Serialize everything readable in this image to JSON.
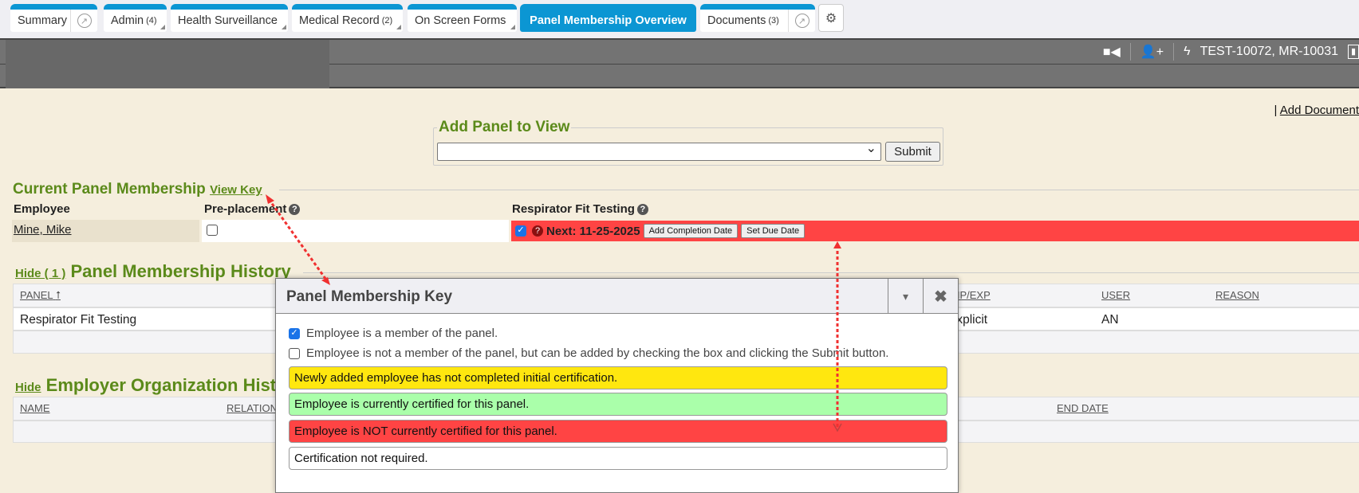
{
  "tabs": [
    {
      "label": "Summary",
      "badge": ""
    },
    {
      "label": "Admin",
      "badge": "(4)"
    },
    {
      "label": "Health Surveillance",
      "badge": ""
    },
    {
      "label": "Medical Record",
      "badge": "(2)"
    },
    {
      "label": "On Screen Forms",
      "badge": ""
    },
    {
      "label": "Panel Membership Overview",
      "badge": ""
    },
    {
      "label": "Documents",
      "badge": "(3)"
    }
  ],
  "header": {
    "record_id": "TEST-10072, MR-10031",
    "icons": [
      "video-icon",
      "add-user-icon",
      "bolt-icon",
      "chart-icon"
    ]
  },
  "add_document_link": "Add Document",
  "add_panel": {
    "legend": "Add Panel to View",
    "select_value": "",
    "submit_label": "Submit"
  },
  "current": {
    "title": "Current Panel Membership",
    "view_key": "View Key",
    "columns": [
      "Employee",
      "Pre-placement",
      "Respirator Fit Testing"
    ],
    "employee": "Mine, Mike",
    "preplacement_checked": false,
    "respirator_checked": true,
    "next": "Next: 11-25-2025",
    "add_completion": "Add Completion Date",
    "set_due": "Set Due Date",
    "status_color": "#ff4444"
  },
  "history": {
    "hide": "Hide ( 1 )",
    "title": "Panel Membership History",
    "columns": [
      "PANEL",
      "IMP/EXP",
      "USER",
      "REASON"
    ],
    "row": [
      "Respirator Fit Testing",
      "Explicit",
      "AN",
      ""
    ]
  },
  "employer": {
    "hide": "Hide",
    "title": "Employer Organization History",
    "columns": [
      "NAME",
      "RELATION",
      "END DATE"
    ]
  },
  "modal": {
    "title": "Panel Membership Key",
    "member": "Employee is a member of the panel.",
    "not_member": "Employee is not a member of the panel, but can be added by checking the box and clicking the Submit button.",
    "keys": [
      {
        "text": "Newly added employee has not completed initial certification.",
        "color": "#ffe70f"
      },
      {
        "text": "Employee is currently certified for this panel.",
        "color": "#aaffaa"
      },
      {
        "text": "Employee is NOT currently certified for this panel.",
        "color": "#ff4444"
      },
      {
        "text": "Certification not required.",
        "color": "#ffffff"
      }
    ]
  }
}
